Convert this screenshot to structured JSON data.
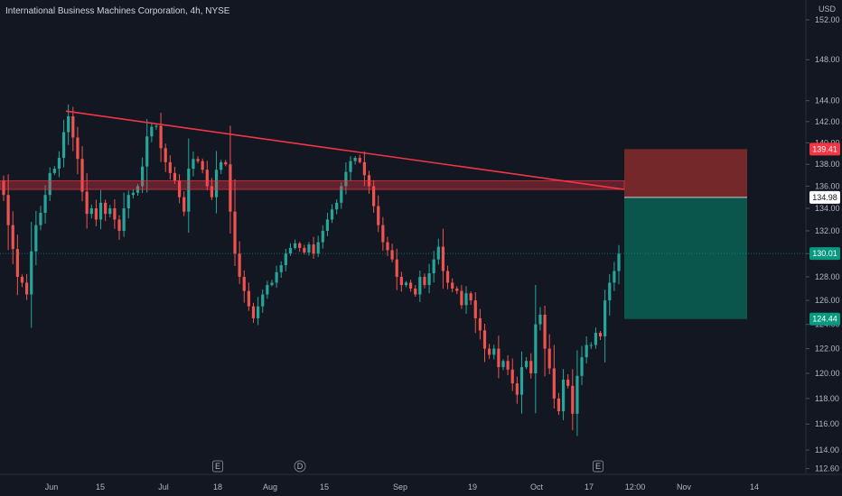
{
  "header": {
    "symbol_name": "International Business Machines Corporation",
    "interval": "4h",
    "exchange": "NYSE"
  },
  "price_axis": {
    "currency": "USD",
    "ticks": [
      112.6,
      114.0,
      116.0,
      118.0,
      120.0,
      122.0,
      124.0,
      126.0,
      128.0,
      130.0,
      132.0,
      134.0,
      136.0,
      138.0,
      140.0,
      142.0,
      144.0,
      148.0,
      152.0
    ],
    "tick_labels": [
      "112.60",
      "114.00",
      "116.00",
      "118.00",
      "120.00",
      "122.00",
      "124.00",
      "126.00",
      "128.00",
      "130.00",
      "132.00",
      "134.00",
      "136.00",
      "138.00",
      "140.00",
      "142.00",
      "144.00",
      "148.00",
      "152.00"
    ]
  },
  "time_axis": {
    "labels": [
      "Jun",
      "15",
      "Jul",
      "18",
      "Aug",
      "15",
      "Sep",
      "19",
      "Oct",
      "17",
      "12:00",
      "Nov",
      "14"
    ]
  },
  "price_tags": [
    {
      "label": "139.41",
      "value": 139.41,
      "bg": "#f23645",
      "fg": "#ffffff"
    },
    {
      "label": "134.98",
      "value": 134.98,
      "bg": "#ffffff",
      "fg": "#131722"
    },
    {
      "label": "130.01",
      "value": 130.01,
      "bg": "#089981",
      "fg": "#ffffff"
    },
    {
      "label": "124.44",
      "value": 124.44,
      "bg": "#089981",
      "fg": "#ffffff"
    }
  ],
  "event_markers": [
    {
      "label": "E",
      "date_label": "Jul 18"
    },
    {
      "label": "D",
      "date_label": "Aug 15"
    },
    {
      "label": "E",
      "date_label": "Oct 17"
    }
  ],
  "colors": {
    "background": "#131722",
    "up": "#26a69a",
    "down": "#ef5350",
    "trendline": "#f23645",
    "stop_zone": "#7f2a2a",
    "target_zone": "#0b5a4f",
    "grid": "#1e222d"
  },
  "chart_data": {
    "type": "candlestick",
    "title": "International Business Machines Corporation, 4h, NYSE",
    "xlabel": "",
    "ylabel": "USD",
    "ylim": [
      112.6,
      152.0
    ],
    "y_scale": "log",
    "grid": false,
    "trend_line": {
      "from": {
        "date": "Jun 6",
        "price": 143.0
      },
      "to": {
        "date": "Oct 24",
        "price": 135.7
      }
    },
    "resistance_zone": {
      "from_price": 135.7,
      "to_price": 136.5
    },
    "position": {
      "type": "short",
      "entry": 134.98,
      "stop_loss": 139.41,
      "take_profit": 124.44,
      "current_price": 130.01
    },
    "closes": [
      135.2,
      132.5,
      130.4,
      128.0,
      127.5,
      126.5,
      130.2,
      132.5,
      133.6,
      135.2,
      137.2,
      137.6,
      138.6,
      141.0,
      142.5,
      140.5,
      138.5,
      135.5,
      133.5,
      134.0,
      133.0,
      134.5,
      133.5,
      134.0,
      133.0,
      132.0,
      134.0,
      135.2,
      135.4,
      136.0,
      137.8,
      140.6,
      141.5,
      141.6,
      139.5,
      138.2,
      137.2,
      136.5,
      135.0,
      133.7,
      137.6,
      138.5,
      138.3,
      137.5,
      136.0,
      135.0,
      137.5,
      138.2,
      138.0,
      133.7,
      130.0,
      128.0,
      126.8,
      125.5,
      124.5,
      125.5,
      126.5,
      127.3,
      127.5,
      128.4,
      129.0,
      130.0,
      130.5,
      130.9,
      130.5,
      130.1,
      130.8,
      130.0,
      131.0,
      132.0,
      133.0,
      133.9,
      134.5,
      136.0,
      137.3,
      138.3,
      138.6,
      138.2,
      137.0,
      136.0,
      134.2,
      132.5,
      131.0,
      130.3,
      129.5,
      128.0,
      127.3,
      127.5,
      127.0,
      126.5,
      128.0,
      127.3,
      128.3,
      129.5,
      130.6,
      128.5,
      127.5,
      127.0,
      126.8,
      125.6,
      126.6,
      126.0,
      124.5,
      123.5,
      122.0,
      121.5,
      122.0,
      120.5,
      121.0,
      120.3,
      119.2,
      118.3,
      120.5,
      121.0,
      120.0,
      124.0,
      124.8,
      122.0,
      120.4,
      118.0,
      117.0,
      119.5,
      119.0,
      116.8,
      119.8,
      121.3,
      122.3,
      122.3,
      123.3,
      123.0,
      126.0,
      127.5,
      128.5,
      130.0
    ]
  }
}
